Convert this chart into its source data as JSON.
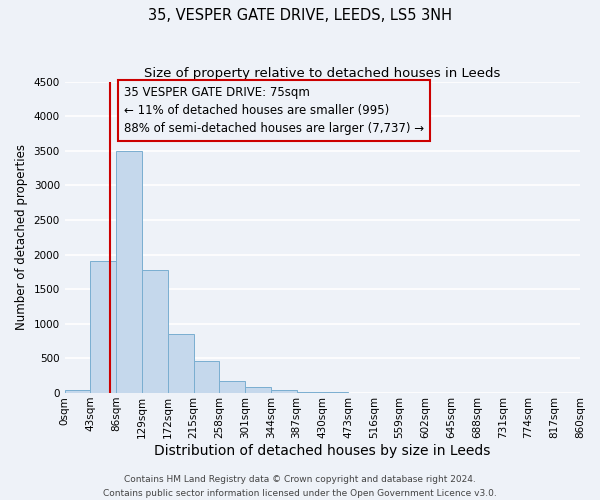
{
  "title": "35, VESPER GATE DRIVE, LEEDS, LS5 3NH",
  "subtitle": "Size of property relative to detached houses in Leeds",
  "xlabel": "Distribution of detached houses by size in Leeds",
  "ylabel": "Number of detached properties",
  "bin_labels": [
    "0sqm",
    "43sqm",
    "86sqm",
    "129sqm",
    "172sqm",
    "215sqm",
    "258sqm",
    "301sqm",
    "344sqm",
    "387sqm",
    "430sqm",
    "473sqm",
    "516sqm",
    "559sqm",
    "602sqm",
    "645sqm",
    "688sqm",
    "731sqm",
    "774sqm",
    "817sqm",
    "860sqm"
  ],
  "bar_heights": [
    40,
    1910,
    3500,
    1780,
    860,
    460,
    175,
    90,
    45,
    20,
    10,
    0,
    0,
    0,
    0,
    0,
    0,
    0,
    0,
    0
  ],
  "bar_color": "#c5d8ec",
  "bar_edgecolor": "#7aaed0",
  "ylim": [
    0,
    4500
  ],
  "yticks": [
    0,
    500,
    1000,
    1500,
    2000,
    2500,
    3000,
    3500,
    4000,
    4500
  ],
  "annotation_box_text": "35 VESPER GATE DRIVE: 75sqm\n← 11% of detached houses are smaller (995)\n88% of semi-detached houses are larger (7,737) →",
  "footer_line1": "Contains HM Land Registry data © Crown copyright and database right 2024.",
  "footer_line2": "Contains public sector information licensed under the Open Government Licence v3.0.",
  "background_color": "#eef2f8",
  "grid_color": "#ffffff",
  "bin_width": 43,
  "num_bins": 20,
  "red_line_color": "#cc0000",
  "box_edgecolor": "#cc0000",
  "title_fontsize": 10.5,
  "subtitle_fontsize": 9.5,
  "xlabel_fontsize": 10,
  "ylabel_fontsize": 8.5,
  "tick_fontsize": 7.5,
  "annotation_fontsize": 8.5,
  "footer_fontsize": 6.5
}
